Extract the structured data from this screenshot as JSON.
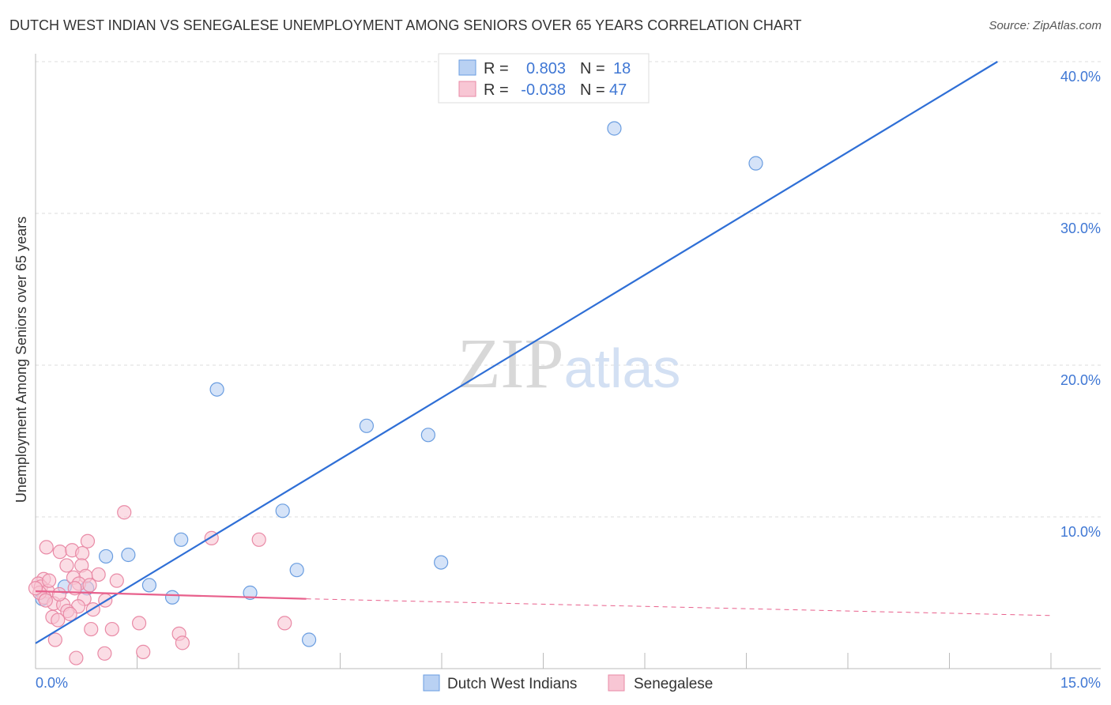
{
  "title": "DUTCH WEST INDIAN VS SENEGALESE UNEMPLOYMENT AMONG SENIORS OVER 65 YEARS CORRELATION CHART",
  "source": "Source: ZipAtlas.com",
  "watermark": "ZIPatlas",
  "chart_data": {
    "type": "scatter",
    "title": "DUTCH WEST INDIAN VS SENEGALESE UNEMPLOYMENT AMONG SENIORS OVER 65 YEARS CORRELATION CHART",
    "ylabel": "Unemployment Among Seniors over 65 years",
    "xlabel": "",
    "xlim": [
      0,
      15
    ],
    "ylim": [
      0,
      40
    ],
    "x_tick_labels": [
      "0.0%",
      "15.0%"
    ],
    "y_ticks": [
      10,
      20,
      30,
      40
    ],
    "y_tick_labels": [
      "10.0%",
      "20.0%",
      "30.0%",
      "40.0%"
    ],
    "legend_position": "top-center",
    "stats": [
      {
        "r_label": "R =",
        "r": "0.803",
        "n_label": "N =",
        "n": "18"
      },
      {
        "r_label": "R =",
        "r": "-0.038",
        "n_label": "N =",
        "n": "47"
      }
    ],
    "series": [
      {
        "name": "Dutch West Indians",
        "color": "#6a9de0",
        "fill": "#b9d1f3",
        "line_color": "#2f6fd6",
        "trend": {
          "x": [
            0,
            14.21
          ],
          "y": [
            1.67,
            40
          ]
        },
        "points": [
          [
            8.55,
            35.6
          ],
          [
            10.64,
            33.3
          ],
          [
            2.68,
            18.4
          ],
          [
            4.89,
            16.0
          ],
          [
            5.8,
            15.4
          ],
          [
            3.65,
            10.4
          ],
          [
            2.15,
            8.5
          ],
          [
            1.37,
            7.5
          ],
          [
            1.04,
            7.4
          ],
          [
            3.86,
            6.5
          ],
          [
            5.99,
            7.0
          ],
          [
            1.68,
            5.5
          ],
          [
            0.43,
            5.4
          ],
          [
            0.76,
            5.3
          ],
          [
            2.02,
            4.7
          ],
          [
            3.17,
            5.0
          ],
          [
            4.04,
            1.9
          ],
          [
            0.1,
            4.6
          ]
        ]
      },
      {
        "name": "Senegalese",
        "color": "#e98aa6",
        "fill": "#f8c6d4",
        "line_color": "#e8608c",
        "trend": {
          "x": [
            0,
            4.0
          ],
          "y": [
            5.1,
            4.6
          ]
        },
        "trend_dashed": {
          "x": [
            4.0,
            15
          ],
          "y": [
            4.6,
            3.5
          ]
        },
        "points": [
          [
            1.31,
            10.3
          ],
          [
            0.16,
            8.0
          ],
          [
            0.77,
            8.4
          ],
          [
            2.6,
            8.6
          ],
          [
            3.3,
            8.5
          ],
          [
            0.36,
            7.7
          ],
          [
            0.54,
            7.8
          ],
          [
            0.69,
            7.6
          ],
          [
            0.46,
            6.8
          ],
          [
            0.68,
            6.8
          ],
          [
            0.93,
            6.2
          ],
          [
            0.74,
            6.1
          ],
          [
            0.56,
            6.0
          ],
          [
            0.12,
            5.9
          ],
          [
            0.04,
            5.6
          ],
          [
            0.08,
            5.4
          ],
          [
            0.18,
            5.1
          ],
          [
            0.64,
            5.6
          ],
          [
            0.8,
            5.5
          ],
          [
            0.13,
            4.7
          ],
          [
            0.72,
            4.6
          ],
          [
            1.03,
            4.5
          ],
          [
            0.27,
            4.3
          ],
          [
            0.41,
            4.2
          ],
          [
            0.63,
            4.1
          ],
          [
            0.47,
            3.8
          ],
          [
            0.85,
            3.9
          ],
          [
            0.51,
            3.6
          ],
          [
            0.25,
            3.4
          ],
          [
            0.33,
            3.2
          ],
          [
            1.53,
            3.0
          ],
          [
            3.68,
            3.0
          ],
          [
            0.82,
            2.6
          ],
          [
            1.13,
            2.6
          ],
          [
            2.12,
            2.3
          ],
          [
            2.17,
            1.7
          ],
          [
            0.29,
            1.9
          ],
          [
            1.02,
            1.0
          ],
          [
            1.59,
            1.1
          ],
          [
            0.6,
            0.7
          ],
          [
            0.06,
            5.0
          ],
          [
            0.0,
            5.3
          ],
          [
            0.2,
            5.8
          ],
          [
            0.35,
            4.9
          ],
          [
            0.58,
            5.3
          ],
          [
            0.15,
            4.5
          ],
          [
            1.2,
            5.8
          ]
        ]
      }
    ]
  }
}
